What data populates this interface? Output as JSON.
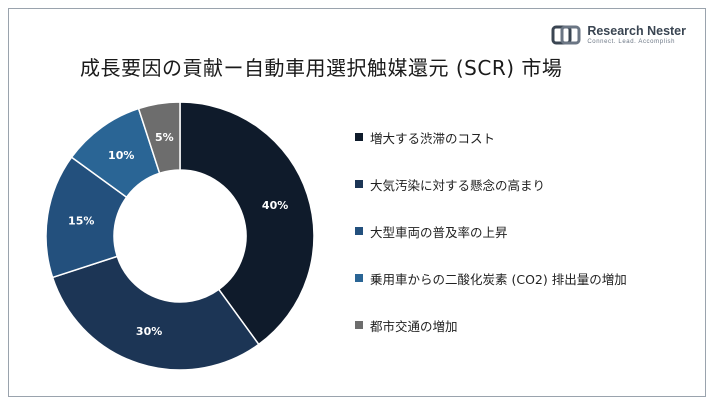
{
  "title": "成長要因の貢献ー自動車用選択触媒還元 (SCR) 市場",
  "logo": {
    "name": "Research Nester",
    "tagline": "Connect. Lead. Accomplish"
  },
  "chart_data": {
    "type": "pie",
    "donut": true,
    "unit": "%",
    "legend_position": "right",
    "categories": [
      "増大する渋滞のコスト",
      "大気汚染に対する懸念の高まり",
      "大型車両の普及率の上昇",
      "乗用車からの二酸化炭素 (CO2) 排出量の増加",
      "都市交通の増加"
    ],
    "values": [
      40,
      30,
      15,
      10,
      5
    ],
    "colors": [
      "#0f1b2b",
      "#1c3555",
      "#23507d",
      "#2a6595",
      "#6d6d6d"
    ]
  }
}
